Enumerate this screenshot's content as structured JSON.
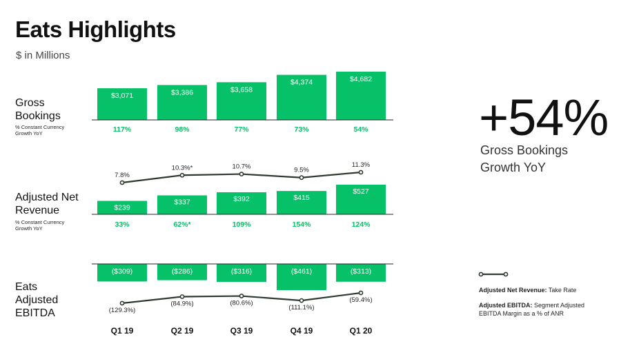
{
  "page": {
    "title": "Eats Highlights",
    "subtitle": "$ in Millions",
    "kpi_value": "+54%",
    "kpi_label_line1": "Gross Bookings",
    "kpi_label_line2": "Growth YoY"
  },
  "rows": {
    "gross_bookings": {
      "label_line1": "Gross",
      "label_line2": "Bookings",
      "sub_line1": "% Constant Currency",
      "sub_line2": "Growth YoY"
    },
    "adjusted_net_revenue": {
      "label_line1": "Adjusted Net",
      "label_line2": "Revenue",
      "sub_line1": "% Constant Currency",
      "sub_line2": "Growth YoY"
    },
    "eats_adjusted_ebitda": {
      "label_line1": "Eats",
      "label_line2": "Adjusted",
      "label_line3": "EBITDA"
    }
  },
  "legend": {
    "item1_bold": "Adjusted Net Revenue:",
    "item1_text": " Take Rate",
    "item2_bold": "Adjusted EBITDA:",
    "item2_text": " Segment Adjusted",
    "item2_text_line2": "EBITDA Margin as a % of ANR"
  },
  "colors": {
    "bar": "#06c167",
    "line": "#2a3a2e",
    "axis": "#222222",
    "growth_text": "#06c167"
  },
  "chart_data": {
    "type": "bar",
    "categories": [
      "Q1 19",
      "Q2 19",
      "Q3 19",
      "Q4 19",
      "Q1 20"
    ],
    "series": [
      {
        "name": "Gross Bookings",
        "values": [
          3071,
          3386,
          3658,
          4374,
          4682
        ],
        "labels": [
          "$3,071",
          "$3,386",
          "$3,658",
          "$4,374",
          "$4,682"
        ],
        "growth_labels": [
          "117%",
          "98%",
          "77%",
          "73%",
          "54%"
        ]
      },
      {
        "name": "Adjusted Net Revenue",
        "values": [
          239,
          337,
          392,
          415,
          527
        ],
        "labels": [
          "$239",
          "$337",
          "$392",
          "$415",
          "$527"
        ],
        "growth_labels": [
          "33%",
          "62%*",
          "109%",
          "154%",
          "124%"
        ],
        "take_rate": [
          7.8,
          10.3,
          10.7,
          9.5,
          11.3
        ],
        "take_rate_labels": [
          "7.8%",
          "10.3%*",
          "10.7%",
          "9.5%",
          "11.3%"
        ]
      },
      {
        "name": "Eats Adjusted EBITDA",
        "values": [
          -309,
          -286,
          -316,
          -461,
          -313
        ],
        "labels": [
          "($309)",
          "($286)",
          "($316)",
          "($461)",
          "($313)"
        ],
        "margin": [
          -129.3,
          -84.9,
          -80.6,
          -111.1,
          -59.4
        ],
        "margin_labels": [
          "(129.3%)",
          "(84.9%)",
          "(80.6%)",
          "(111.1%)",
          "(59.4%)"
        ]
      }
    ]
  }
}
